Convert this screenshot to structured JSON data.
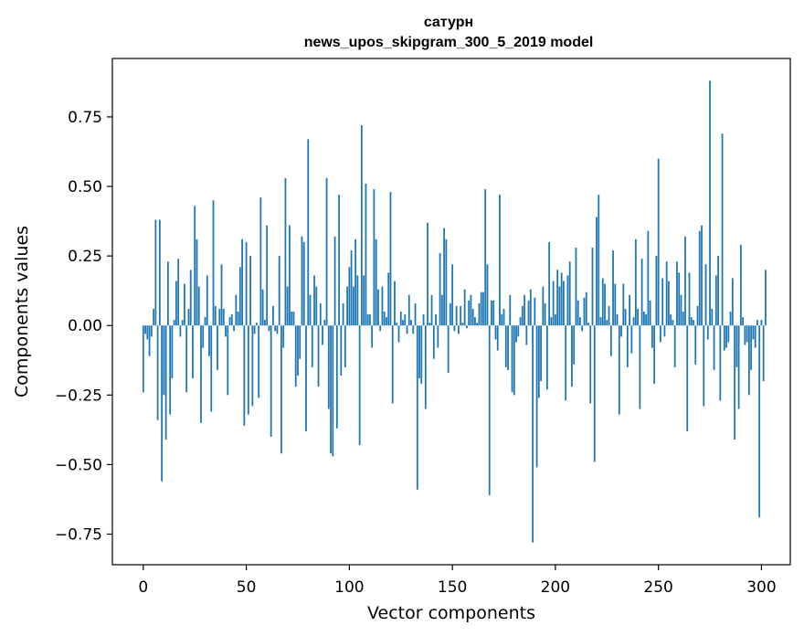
{
  "chart_data": {
    "type": "bar",
    "title": "сатурн",
    "subtitle": "news_upos_skipgram_300_5_2019 model",
    "xlabel": "Vector components",
    "ylabel": "Components values",
    "xlim": [
      -15,
      314
    ],
    "ylim": [
      -0.86,
      0.96
    ],
    "xticks": [
      0,
      50,
      100,
      150,
      200,
      250,
      300
    ],
    "yticks": [
      -0.75,
      -0.5,
      -0.25,
      0.0,
      0.25,
      0.5,
      0.75
    ],
    "xtick_labels": [
      "0",
      "50",
      "100",
      "150",
      "200",
      "250",
      "300"
    ],
    "ytick_labels": [
      "−0.75",
      "−0.50",
      "−0.25",
      "0.00",
      "0.25",
      "0.50",
      "0.75"
    ],
    "grid": false,
    "bar_color": "#1f77b4",
    "values": [
      -0.24,
      -0.03,
      -0.05,
      -0.11,
      -0.04,
      0.06,
      0.38,
      -0.34,
      0.38,
      -0.56,
      -0.25,
      -0.41,
      0.23,
      -0.32,
      -0.19,
      0.02,
      0.16,
      0.24,
      -0.04,
      0.02,
      0.15,
      -0.24,
      0.06,
      0.2,
      -0.19,
      0.43,
      0.31,
      0.14,
      -0.35,
      -0.08,
      0.03,
      0.18,
      -0.11,
      -0.31,
      0.45,
      0.07,
      -0.16,
      0.06,
      0.22,
      0.06,
      -0.04,
      -0.25,
      0.03,
      0.04,
      -0.02,
      0.11,
      0.05,
      0.21,
      0.31,
      -0.36,
      0.3,
      -0.32,
      0.25,
      -0.29,
      -0.03,
      0.01,
      -0.26,
      0.46,
      0.13,
      0.02,
      0.36,
      -0.02,
      -0.4,
      0.07,
      -0.02,
      -0.03,
      0.25,
      -0.46,
      -0.08,
      0.53,
      0.14,
      0.36,
      0.05,
      0.05,
      -0.22,
      -0.18,
      -0.12,
      0.32,
      0.3,
      -0.38,
      0.67,
      0.11,
      -0.15,
      0.18,
      0.14,
      -0.22,
      0.08,
      -0.07,
      0.02,
      0.53,
      -0.3,
      -0.46,
      -0.47,
      0.32,
      -0.37,
      0.47,
      -0.18,
      0.08,
      -0.15,
      0.14,
      0.21,
      0.27,
      0.14,
      0.31,
      0.18,
      -0.43,
      0.72,
      0.18,
      0.51,
      0.04,
      0.04,
      -0.08,
      0.49,
      0.31,
      0.13,
      -0.02,
      0.14,
      0.05,
      0.03,
      0.19,
      0.48,
      -0.28,
      0.16,
      0.01,
      -0.06,
      0.05,
      0.02,
      0.04,
      -0.03,
      0.11,
      0.02,
      -0.03,
      0.08,
      -0.59,
      -0.19,
      -0.21,
      0.04,
      -0.3,
      0.37,
      0.01,
      0.11,
      -0.12,
      0.04,
      -0.08,
      0.26,
      0.11,
      0.35,
      0.31,
      -0.17,
      0.08,
      0.22,
      -0.02,
      0.07,
      -0.03,
      0.07,
      0.01,
      0.13,
      -0.01,
      0.09,
      0.11,
      0.06,
      0.03,
      0.01,
      0.08,
      0.12,
      0.12,
      0.49,
      0.22,
      -0.61,
      0.09,
      0.09,
      -0.05,
      -0.09,
      0.47,
      0.04,
      0.06,
      -0.15,
      -0.16,
      0.11,
      -0.24,
      -0.25,
      -0.06,
      -0.04,
      0.03,
      0.07,
      0.11,
      -0.07,
      0.09,
      0.13,
      -0.78,
      0.1,
      -0.51,
      -0.26,
      -0.2,
      0.14,
      0.08,
      -0.23,
      0.3,
      0.03,
      0.16,
      0.04,
      0.2,
      0.14,
      0.19,
      0.16,
      -0.27,
      0.18,
      0.23,
      -0.22,
      -0.14,
      0.28,
      0.09,
      0.03,
      -0.02,
      0.1,
      0.12,
      0.01,
      -0.28,
      0.28,
      -0.49,
      0.39,
      0.47,
      0.03,
      0.17,
      0.15,
      0.02,
      0.07,
      -0.11,
      0.27,
      0.15,
      0.04,
      -0.32,
      -0.04,
      0.15,
      0.06,
      -0.15,
      0.11,
      -0.1,
      0.03,
      0.31,
      0.06,
      -0.3,
      0.24,
      0.05,
      0.04,
      0.34,
      0.09,
      -0.08,
      -0.21,
      0.25,
      0.6,
      -0.06,
      0.17,
      -0.04,
      0.23,
      0.16,
      0.04,
      0.02,
      -0.15,
      0.23,
      0.19,
      0.11,
      0.05,
      0.32,
      -0.38,
      0.19,
      0.03,
      0.02,
      -0.14,
      0.07,
      0.34,
      0.36,
      -0.29,
      0.22,
      -0.05,
      0.88,
      0.06,
      -0.16,
      0.18,
      0.25,
      -0.27,
      0.69,
      -0.09,
      -0.08,
      -0.06,
      0.05,
      0.17,
      -0.41,
      -0.15,
      -0.3,
      0.29,
      0.03,
      -0.07,
      -0.06,
      -0.25,
      -0.16,
      -0.05,
      -0.08,
      0.02,
      -0.69,
      0.02,
      -0.2,
      0.2
    ]
  }
}
